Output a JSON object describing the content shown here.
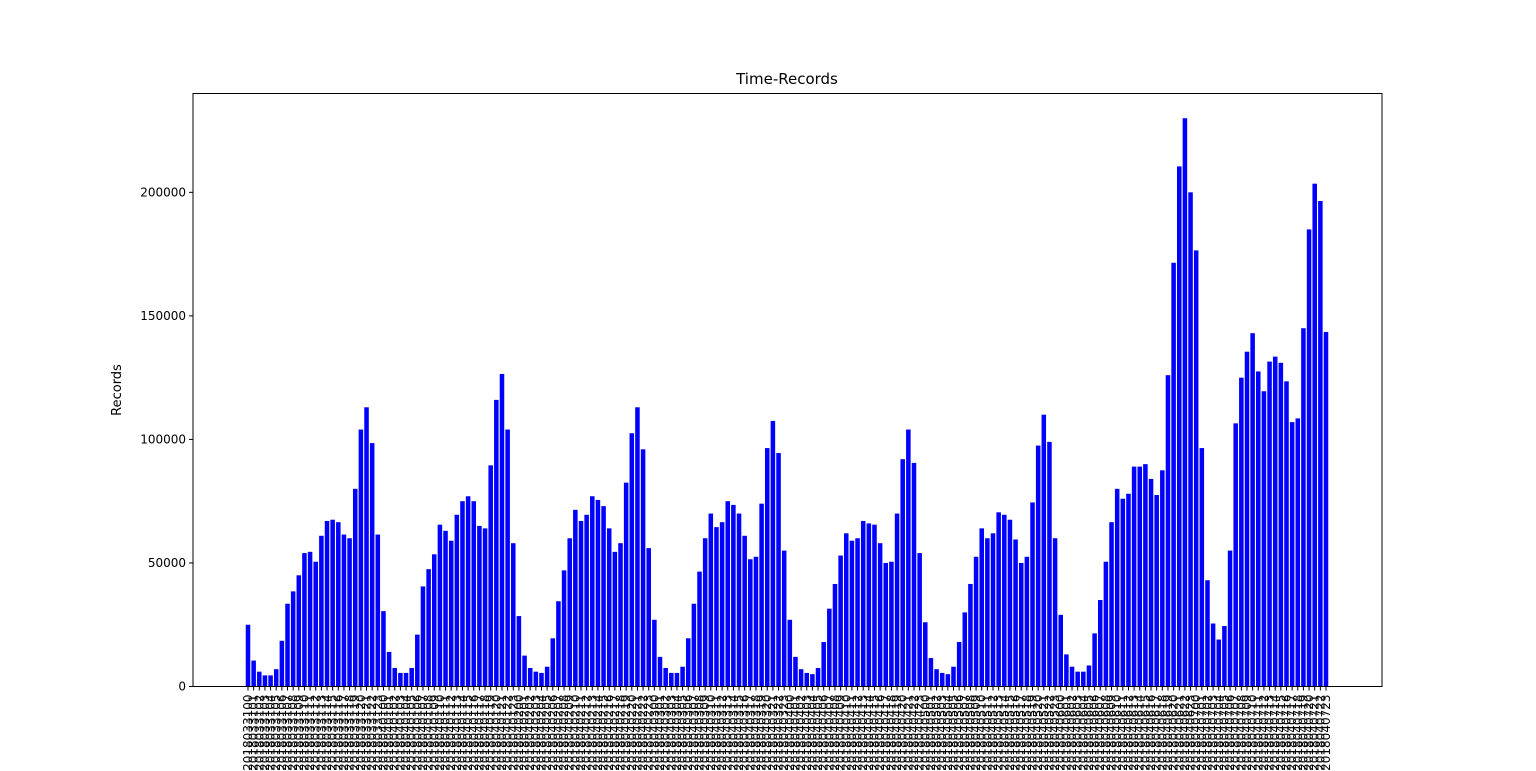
{
  "chart_data": {
    "type": "bar",
    "title": "Time-Records",
    "xlabel": "",
    "ylabel": "Records",
    "ylim": [
      0,
      240000
    ],
    "yticks": [
      0,
      50000,
      100000,
      150000,
      200000
    ],
    "ytick_labels": [
      "0",
      "50000",
      "100000",
      "150000",
      "200000"
    ],
    "grid": false,
    "legend": "none",
    "bar_color": "#0000ff",
    "categories": [
      "2018033100",
      "2018033101",
      "2018033102",
      "2018033103",
      "2018033104",
      "2018033105",
      "2018033106",
      "2018033107",
      "2018033108",
      "2018033109",
      "2018033110",
      "2018033111",
      "2018033112",
      "2018033113",
      "2018033114",
      "2018033115",
      "2018033116",
      "2018033117",
      "2018033118",
      "2018033119",
      "2018033120",
      "2018033121",
      "2018033122",
      "2018033123",
      "2018040100",
      "2018040101",
      "2018040102",
      "2018040103",
      "2018040104",
      "2018040105",
      "2018040106",
      "2018040107",
      "2018040108",
      "2018040109",
      "2018040110",
      "2018040111",
      "2018040112",
      "2018040113",
      "2018040114",
      "2018040115",
      "2018040116",
      "2018040117",
      "2018040118",
      "2018040119",
      "2018040120",
      "2018040121",
      "2018040122",
      "2018040123",
      "2018040200",
      "2018040201",
      "2018040202",
      "2018040203",
      "2018040204",
      "2018040205",
      "2018040206",
      "2018040207",
      "2018040208",
      "2018040209",
      "2018040210",
      "2018040211",
      "2018040212",
      "2018040213",
      "2018040214",
      "2018040215",
      "2018040216",
      "2018040217",
      "2018040218",
      "2018040219",
      "2018040220",
      "2018040221",
      "2018040222",
      "2018040223",
      "2018040300",
      "2018040301",
      "2018040302",
      "2018040303",
      "2018040304",
      "2018040305",
      "2018040306",
      "2018040307",
      "2018040308",
      "2018040309",
      "2018040310",
      "2018040311",
      "2018040312",
      "2018040313",
      "2018040314",
      "2018040315",
      "2018040316",
      "2018040317",
      "2018040318",
      "2018040319",
      "2018040320",
      "2018040321",
      "2018040322",
      "2018040323",
      "2018040400",
      "2018040401",
      "2018040402",
      "2018040403",
      "2018040404",
      "2018040405",
      "2018040406",
      "2018040407",
      "2018040408",
      "2018040409",
      "2018040410",
      "2018040411",
      "2018040412",
      "2018040413",
      "2018040414",
      "2018040415",
      "2018040416",
      "2018040417",
      "2018040418",
      "2018040419",
      "2018040420",
      "2018040421",
      "2018040422",
      "2018040423",
      "2018040500",
      "2018040501",
      "2018040502",
      "2018040503",
      "2018040504",
      "2018040505",
      "2018040506",
      "2018040507",
      "2018040508",
      "2018040509",
      "2018040510",
      "2018040511",
      "2018040512",
      "2018040513",
      "2018040514",
      "2018040515",
      "2018040516",
      "2018040517",
      "2018040518",
      "2018040519",
      "2018040520",
      "2018040521",
      "2018040522",
      "2018040523",
      "2018040600",
      "2018040601",
      "2018040602",
      "2018040603",
      "2018040604",
      "2018040605",
      "2018040606",
      "2018040607",
      "2018040608",
      "2018040609",
      "2018040610",
      "2018040611",
      "2018040612",
      "2018040613",
      "2018040614",
      "2018040615",
      "2018040616",
      "2018040617",
      "2018040618",
      "2018040619",
      "2018040620",
      "2018040621",
      "2018040622",
      "2018040623",
      "2018040700",
      "2018040701",
      "2018040702",
      "2018040703",
      "2018040704",
      "2018040705",
      "2018040706",
      "2018040707",
      "2018040708",
      "2018040709",
      "2018040710",
      "2018040711",
      "2018040712",
      "2018040713",
      "2018040714",
      "2018040715",
      "2018040716",
      "2018040717",
      "2018040718",
      "2018040719",
      "2018040720",
      "2018040721",
      "2018040722",
      "2018040723"
    ],
    "values": [
      25000,
      10500,
      6000,
      4500,
      4500,
      7000,
      18500,
      33500,
      38500,
      45000,
      54000,
      54500,
      50500,
      61000,
      67000,
      67500,
      66500,
      61500,
      60000,
      80000,
      104000,
      113000,
      98500,
      61500,
      30500,
      14000,
      7500,
      5500,
      5500,
      7500,
      21000,
      40500,
      47500,
      53500,
      65500,
      63000,
      59000,
      69500,
      75000,
      77000,
      75000,
      65000,
      64000,
      89500,
      116000,
      126500,
      104000,
      58000,
      28500,
      12500,
      7500,
      6000,
      5500,
      8000,
      19500,
      34500,
      47000,
      60000,
      71500,
      67000,
      69500,
      77000,
      75500,
      73000,
      64000,
      54500,
      58000,
      82500,
      102500,
      113000,
      96000,
      56000,
      27000,
      12000,
      7500,
      5500,
      5500,
      8000,
      19500,
      33500,
      46500,
      60000,
      70000,
      64500,
      66500,
      75000,
      73500,
      70000,
      61000,
      51500,
      52500,
      74000,
      96500,
      107500,
      94500,
      55000,
      27000,
      12000,
      7000,
      5500,
      5000,
      7500,
      18000,
      31500,
      41500,
      53000,
      62000,
      59000,
      60000,
      67000,
      66000,
      65500,
      58000,
      50000,
      50500,
      70000,
      92000,
      104000,
      90500,
      54000,
      26000,
      11500,
      7000,
      5500,
      5000,
      8000,
      18000,
      30000,
      41500,
      52500,
      64000,
      60000,
      62000,
      70500,
      69500,
      67500,
      59500,
      50000,
      52500,
      74500,
      97500,
      110000,
      99000,
      60000,
      29000,
      13000,
      8000,
      6000,
      6000,
      8500,
      21500,
      35000,
      50500,
      66500,
      80000,
      76000,
      78000,
      89000,
      89000,
      90000,
      84000,
      77500,
      87500,
      126000,
      171500,
      210500,
      230000,
      200000,
      176500,
      96500,
      43000,
      25500,
      19000,
      24500,
      55000,
      106500,
      125000,
      135500,
      143000,
      127500,
      119500,
      131500,
      133500,
      131000,
      123500,
      107000,
      108500,
      145000,
      185000,
      203500,
      196500,
      143500
    ]
  }
}
